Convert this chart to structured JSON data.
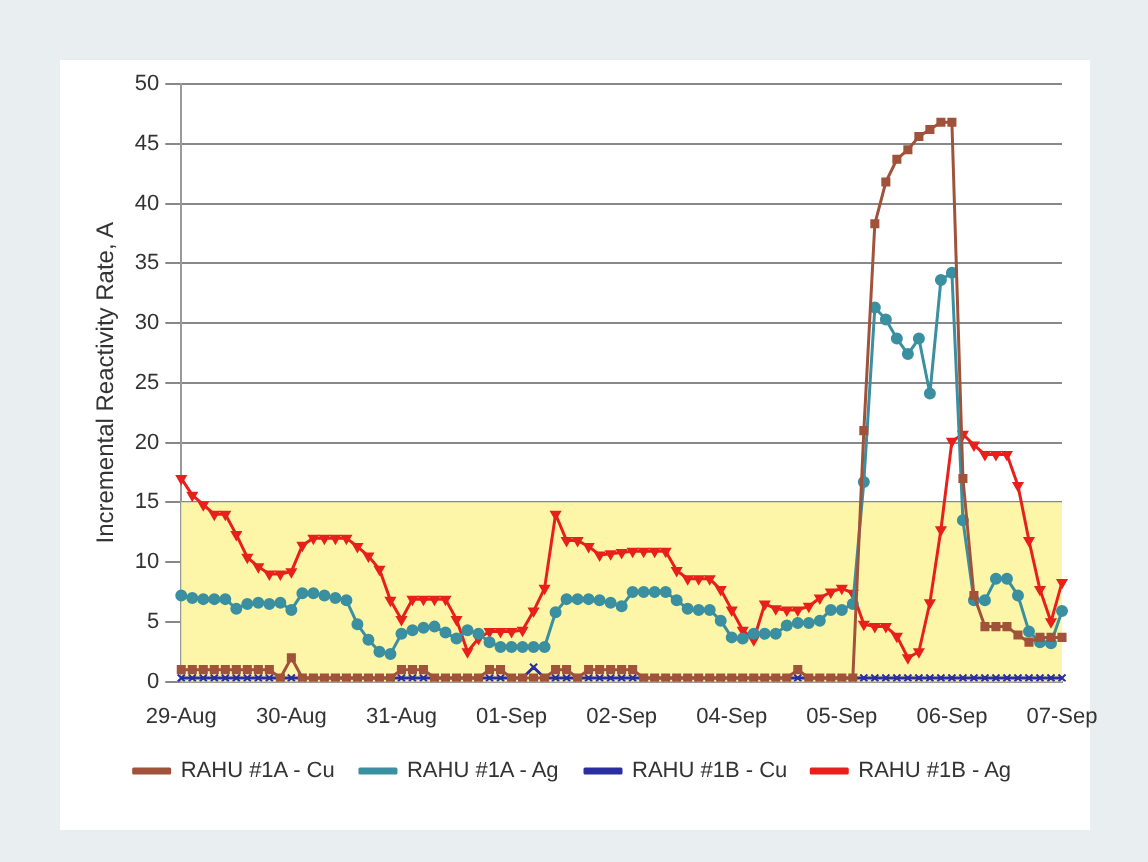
{
  "chart_data": {
    "type": "line",
    "ylabel": "Incremental Reactivity Rate, A",
    "categories": [
      "29-Aug",
      null,
      null,
      null,
      null,
      null,
      null,
      null,
      null,
      null,
      "30-Aug",
      null,
      null,
      null,
      null,
      null,
      null,
      null,
      null,
      null,
      "31-Aug",
      null,
      null,
      null,
      null,
      null,
      null,
      null,
      null,
      null,
      "01-Sep",
      null,
      null,
      null,
      null,
      null,
      null,
      null,
      null,
      null,
      "02-Sep",
      null,
      null,
      null,
      null,
      null,
      null,
      null,
      null,
      null,
      "04-Sep",
      null,
      null,
      null,
      null,
      null,
      null,
      null,
      null,
      null,
      "05-Sep",
      null,
      null,
      null,
      null,
      null,
      null,
      null,
      null,
      null,
      "06-Sep",
      null,
      null,
      null,
      null,
      null,
      null,
      null,
      null,
      null,
      "07-Sep"
    ],
    "ylim": [
      0,
      50
    ],
    "yticks": [
      0,
      5,
      10,
      15,
      20,
      25,
      30,
      35,
      40,
      45,
      50
    ],
    "grid": "y",
    "legend": "bottom",
    "bands": [
      {
        "axis": "y",
        "from": 0,
        "to": 15,
        "color": "#fdf6a8"
      }
    ],
    "series": [
      {
        "name": "RAHU #1A - Cu",
        "color": "#a0523a",
        "marker": "square",
        "values": [
          1,
          1,
          1,
          1,
          1,
          1,
          1,
          1,
          1,
          0.3,
          2,
          0.3,
          0.3,
          0.3,
          0.3,
          0.3,
          0.3,
          0.3,
          0.3,
          0.3,
          1,
          1,
          1,
          0.3,
          0.3,
          0.3,
          0.3,
          0.3,
          1,
          1,
          0.3,
          0.3,
          0.3,
          0.3,
          1,
          1,
          0.3,
          1,
          1,
          1,
          1,
          1,
          0.3,
          0.3,
          0.3,
          0.3,
          0.3,
          0.3,
          0.3,
          0.3,
          0.3,
          0.3,
          0.3,
          0.3,
          0.3,
          0.3,
          1,
          0.3,
          0.3,
          0.3,
          0.3,
          0.3,
          21,
          38.3,
          41.8,
          43.7,
          44.5,
          45.6,
          46.2,
          46.8,
          46.8,
          17,
          7.2,
          4.6,
          4.6,
          4.6,
          3.9,
          3.3,
          3.7,
          3.7,
          3.7
        ]
      },
      {
        "name": "RAHU #1A - Ag",
        "color": "#3a8fa0",
        "marker": "circle",
        "values": [
          7.2,
          7,
          6.9,
          6.9,
          6.9,
          6.1,
          6.5,
          6.6,
          6.5,
          6.6,
          6,
          7.4,
          7.4,
          7.2,
          7,
          6.8,
          4.8,
          3.5,
          2.5,
          2.3,
          4,
          4.3,
          4.5,
          4.6,
          4.1,
          3.6,
          4.3,
          4,
          3.3,
          2.9,
          2.9,
          2.9,
          2.9,
          2.9,
          5.8,
          6.9,
          6.9,
          6.9,
          6.8,
          6.6,
          6.3,
          7.5,
          7.5,
          7.5,
          7.5,
          6.8,
          6.1,
          6,
          6,
          5.1,
          3.7,
          3.6,
          4,
          4,
          4,
          4.7,
          4.9,
          4.9,
          5.1,
          6,
          6,
          6.5,
          16.7,
          31.3,
          30.3,
          28.7,
          27.4,
          28.7,
          24.1,
          33.6,
          34.2,
          13.5,
          6.8,
          6.8,
          8.6,
          8.6,
          7.2,
          4.2,
          3.3,
          3.2,
          5.9
        ]
      },
      {
        "name": "RAHU #1B - Cu",
        "color": "#2a2ea0",
        "marker": "cross",
        "values": [
          0.3,
          0.3,
          0.3,
          0.3,
          0.3,
          0.3,
          0.3,
          0.3,
          0.3,
          0.3,
          0.3,
          0.3,
          0.3,
          0.3,
          0.3,
          0.3,
          0.3,
          0.3,
          0.3,
          0.3,
          0.3,
          0.3,
          0.3,
          0.3,
          0.3,
          0.3,
          0.3,
          0.3,
          0.3,
          0.3,
          0.3,
          0.3,
          1.2,
          0.3,
          0.3,
          0.3,
          0.3,
          0.3,
          0.3,
          0.3,
          0.3,
          0.3,
          0.3,
          0.3,
          0.3,
          0.3,
          0.3,
          0.3,
          0.3,
          0.3,
          0.3,
          0.3,
          0.3,
          0.3,
          0.3,
          0.3,
          0.3,
          0.3,
          0.3,
          0.3,
          0.3,
          0.3,
          0.3,
          0.3,
          0.3,
          0.3,
          0.3,
          0.3,
          0.3,
          0.3,
          0.3,
          0.3,
          0.3,
          0.3,
          0.3,
          0.3,
          0.3,
          0.3,
          0.3,
          0.3,
          0.3
        ]
      },
      {
        "name": "RAHU #1B - Ag",
        "color": "#e8201c",
        "marker": "triangle",
        "values": [
          17,
          15.6,
          14.8,
          14,
          14,
          12.3,
          10.4,
          9.6,
          9,
          9,
          9.2,
          11.4,
          12,
          12,
          12,
          12,
          11.3,
          10.5,
          9.4,
          6.8,
          5.2,
          6.9,
          6.9,
          6.9,
          6.9,
          5.2,
          2.5,
          3.6,
          4.2,
          4.2,
          4.2,
          4.3,
          5.9,
          7.8,
          14,
          11.8,
          11.8,
          11.3,
          10.6,
          10.7,
          10.8,
          10.9,
          10.9,
          10.9,
          10.9,
          9.3,
          8.6,
          8.6,
          8.6,
          7.7,
          6,
          4.3,
          3.5,
          6.5,
          6.1,
          6,
          6,
          6.3,
          7,
          7.5,
          7.8,
          7.4,
          4.8,
          4.6,
          4.6,
          3.8,
          2,
          2.5,
          6.6,
          12.7,
          20.1,
          20.7,
          19.8,
          19,
          19,
          19,
          16.4,
          11.8,
          7.7,
          5,
          8.3
        ]
      }
    ]
  }
}
